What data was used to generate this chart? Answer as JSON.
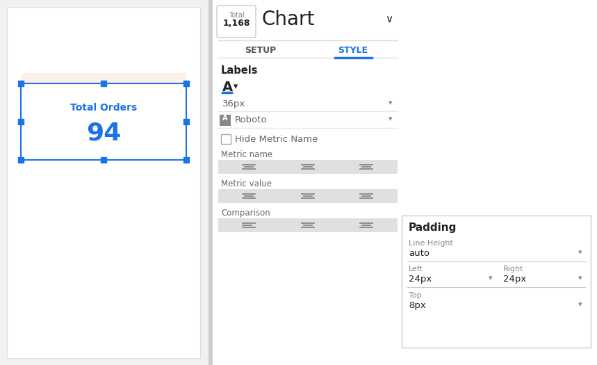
{
  "bg_color": "#f1f1f1",
  "panel_bg": "#ffffff",
  "left_panel_bg": "#ffffff",
  "scorecard_bg": "#ffffff",
  "scorecard_highlight": "#fdf0e6",
  "scorecard_border": "#1a73e8",
  "scorecard_text_color": "#1a73e8",
  "scorecard_title": "Total Orders",
  "scorecard_value": "94",
  "header_total_label": "Total",
  "header_total_value": "1,168",
  "header_chart_title": "Chart",
  "tab_setup": "SETUP",
  "tab_style": "STYLE",
  "section_labels": "Labels",
  "font_size_label": "36px",
  "font_name": "Roboto",
  "hide_metric_checkbox": "Hide Metric Name",
  "metric_name_label": "Metric name",
  "metric_value_label": "Metric value",
  "comparison_label": "Comparison",
  "padding_title": "Padding",
  "line_height_label": "Line Height",
  "line_height_value": "auto",
  "left_label": "Left",
  "left_value": "24px",
  "right_label": "Right",
  "right_value": "24px",
  "top_label": "Top",
  "top_value": "8px",
  "style_tab_color": "#1a73e8",
  "setup_tab_color": "#555555",
  "divider_color": "#cccccc",
  "label_color": "#666666",
  "small_label_color": "#888888",
  "title_color": "#202124",
  "align_bar_color": "#e0e0e0"
}
